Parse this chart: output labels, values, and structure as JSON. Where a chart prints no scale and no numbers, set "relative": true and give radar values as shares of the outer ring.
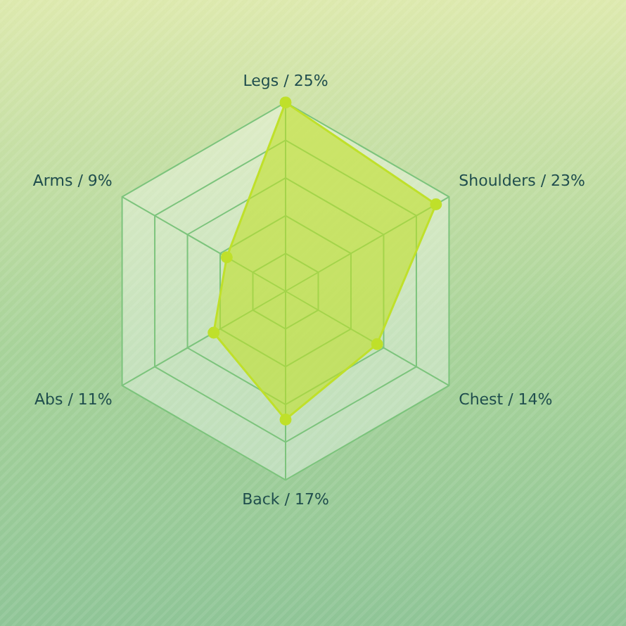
{
  "chart_data": {
    "type": "radar",
    "relative": true,
    "categories": [
      "Legs / 25%",
      "Shoulders / 23%",
      "Chest / 14%",
      "Back / 17%",
      "Abs / 11%",
      "Arms / 9%"
    ],
    "series": [
      {
        "color": "#bfe02a",
        "values": [
          1,
          0.92,
          0.56,
          0.68,
          0.44,
          0.36
        ]
      }
    ],
    "grid": true,
    "legend": false,
    "marker": "circle"
  }
}
